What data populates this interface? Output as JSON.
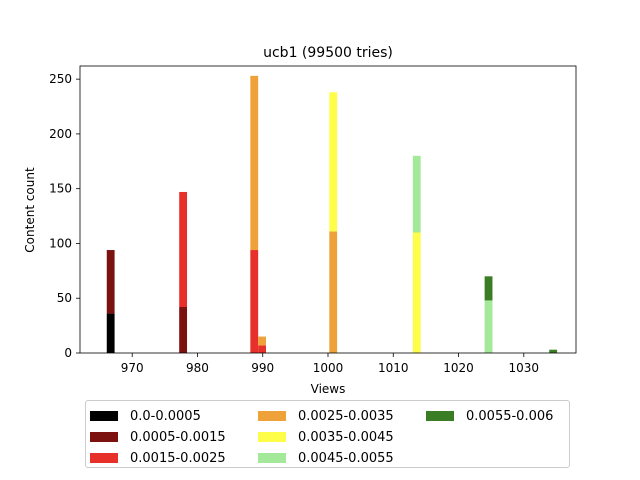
{
  "chart_data": {
    "type": "bar",
    "stacked": true,
    "title": "ucb1 (99500 tries)",
    "xlabel": "Views",
    "ylabel": "Content count",
    "xlim": [
      962,
      1038
    ],
    "ylim": [
      0,
      262
    ],
    "x_ticks": [
      970,
      980,
      990,
      1000,
      1010,
      1020,
      1030
    ],
    "y_ticks": [
      0,
      50,
      100,
      150,
      200,
      250
    ],
    "bin_width": 1.2,
    "grid": false,
    "legend_placement": "bottom",
    "series": [
      {
        "name": "0.0-0.0005",
        "color": "#000000",
        "points": [
          {
            "x": 966.7,
            "y": 36
          }
        ]
      },
      {
        "name": "0.0005-0.0015",
        "color": "#7b1210",
        "points": [
          {
            "x": 966.7,
            "y": 58
          },
          {
            "x": 977.8,
            "y": 42
          }
        ]
      },
      {
        "name": "0.0015-0.0025",
        "color": "#e8302a",
        "points": [
          {
            "x": 977.8,
            "y": 105
          },
          {
            "x": 988.7,
            "y": 94
          },
          {
            "x": 989.9,
            "y": 7
          }
        ]
      },
      {
        "name": "0.0025-0.0035",
        "color": "#f0a23a",
        "points": [
          {
            "x": 988.7,
            "y": 159
          },
          {
            "x": 989.9,
            "y": 8
          },
          {
            "x": 1000.8,
            "y": 111
          }
        ]
      },
      {
        "name": "0.0035-0.0045",
        "color": "#fefe4a",
        "points": [
          {
            "x": 1000.8,
            "y": 127
          },
          {
            "x": 1013.6,
            "y": 110
          }
        ]
      },
      {
        "name": "0.0045-0.0055",
        "color": "#a4e89a",
        "points": [
          {
            "x": 1013.6,
            "y": 70
          },
          {
            "x": 1024.6,
            "y": 48
          }
        ]
      },
      {
        "name": "0.0055-0.006",
        "color": "#3a7d25",
        "points": [
          {
            "x": 1024.6,
            "y": 22
          },
          {
            "x": 1034.5,
            "y": 3
          }
        ]
      }
    ]
  }
}
